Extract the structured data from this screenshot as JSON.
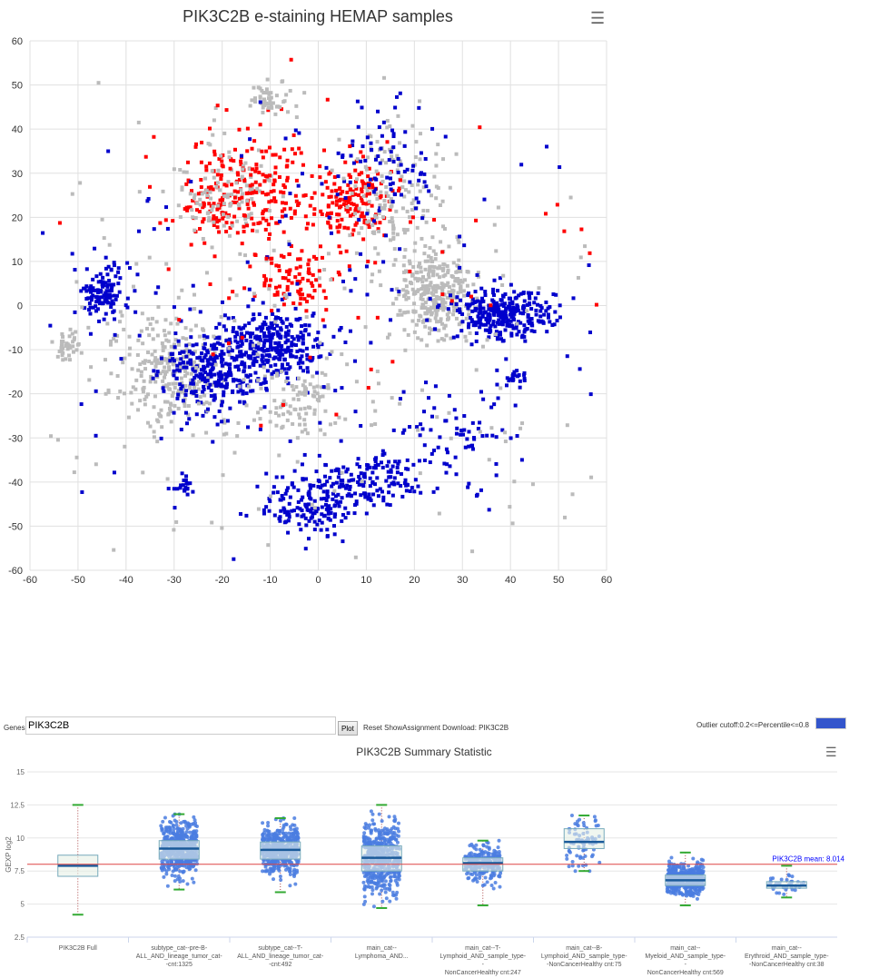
{
  "chart_data": [
    {
      "type": "scatter",
      "title": "PIK3C2B e-staining HEMAP samples",
      "xlim": [
        -60,
        60
      ],
      "ylim": [
        -60,
        60
      ],
      "xticks": [
        -60,
        -50,
        -40,
        -30,
        -20,
        -10,
        0,
        10,
        20,
        30,
        40,
        50,
        60
      ],
      "yticks": [
        -60,
        -50,
        -40,
        -30,
        -20,
        -10,
        0,
        10,
        20,
        30,
        40,
        50,
        60
      ],
      "grid": true,
      "colors": {
        "high": "#ff0000",
        "low": "#0000cc",
        "mid": "#bbbbbb"
      },
      "clusters": [
        {
          "x": -45,
          "y": 3,
          "sx": 3,
          "sy": 3,
          "n": 120,
          "c": "low"
        },
        {
          "x": -52,
          "y": -9,
          "sx": 1.5,
          "sy": 2,
          "n": 40,
          "c": "mid"
        },
        {
          "x": -30,
          "y": -15,
          "sx": 6,
          "sy": 6,
          "n": 250,
          "c": "mid"
        },
        {
          "x": -22,
          "y": -15,
          "sx": 5,
          "sy": 5,
          "n": 250,
          "c": "low"
        },
        {
          "x": -10,
          "y": -9,
          "sx": 5,
          "sy": 4,
          "n": 300,
          "c": "low"
        },
        {
          "x": -20,
          "y": 25,
          "sx": 4,
          "sy": 5,
          "n": 150,
          "c": "high"
        },
        {
          "x": -20,
          "y": 25,
          "sx": 5,
          "sy": 6,
          "n": 100,
          "c": "mid"
        },
        {
          "x": -9,
          "y": 27,
          "sx": 4,
          "sy": 8,
          "n": 120,
          "c": "high"
        },
        {
          "x": -10,
          "y": 47,
          "sx": 3,
          "sy": 2,
          "n": 50,
          "c": "mid"
        },
        {
          "x": -5,
          "y": 5,
          "sx": 5,
          "sy": 3,
          "n": 80,
          "c": "high"
        },
        {
          "x": 8,
          "y": 24,
          "sx": 4,
          "sy": 4,
          "n": 150,
          "c": "high"
        },
        {
          "x": 16,
          "y": 25,
          "sx": 5,
          "sy": 8,
          "n": 150,
          "c": "mid"
        },
        {
          "x": 15,
          "y": 32,
          "sx": 5,
          "sy": 6,
          "n": 80,
          "c": "low"
        },
        {
          "x": 24,
          "y": 3,
          "sx": 4,
          "sy": 5,
          "n": 300,
          "c": "mid"
        },
        {
          "x": 38,
          "y": -2,
          "sx": 5,
          "sy": 3,
          "n": 300,
          "c": "low"
        },
        {
          "x": 41,
          "y": -17,
          "sx": 1,
          "sy": 1,
          "n": 20,
          "c": "low"
        },
        {
          "x": -5,
          "y": -22,
          "sx": 4,
          "sy": 4,
          "n": 80,
          "c": "mid"
        },
        {
          "x": 10,
          "y": -40,
          "sx": 6,
          "sy": 3,
          "n": 150,
          "c": "low"
        },
        {
          "x": -2,
          "y": -46,
          "sx": 5,
          "sy": 3,
          "n": 150,
          "c": "low"
        },
        {
          "x": 30,
          "y": -30,
          "sx": 5,
          "sy": 6,
          "n": 70,
          "c": "low"
        },
        {
          "x": -28,
          "y": -41,
          "sx": 1,
          "sy": 1,
          "n": 20,
          "c": "low"
        },
        {
          "x": -5,
          "y": -10,
          "sx": 40,
          "sy": 25,
          "n": 250,
          "c": "mid"
        },
        {
          "x": 0,
          "y": 0,
          "sx": 35,
          "sy": 25,
          "n": 150,
          "c": "low"
        },
        {
          "x": 0,
          "y": 10,
          "sx": 25,
          "sy": 20,
          "n": 60,
          "c": "high"
        }
      ]
    },
    {
      "type": "box",
      "title": "PIK3C2B Summary Statistic",
      "ylabel": "GEXP log2",
      "ylim": [
        2.5,
        15
      ],
      "yticks": [
        2.5,
        5,
        7.5,
        10,
        12.5,
        15
      ],
      "mean": 8.014,
      "mean_label": "PIK3C2B mean: 8.014",
      "categories": [
        "PIK3C2B Full",
        "subtype_cat--pre-B-ALL_AND_lineage_tumor_cat--cnt:1325",
        "subtype_cat--T-ALL_AND_lineage_tumor_cat--cnt:492",
        "main_cat--Lymphoma_AND...",
        "main_cat--T-Lymphoid_AND_sample_type--NonCancerHealthy cnt:247",
        "main_cat--B-Lymphoid_AND_sample_type--NonCancerHealthy cnt:75",
        "main_cat--Myeloid_AND_sample_type--NonCancerHealthy cnt:569",
        "main_cat--Erythroid_AND_sample_type--NonCancerHealthy cnt:38"
      ],
      "boxes": [
        [
          4.2,
          7.1,
          7.9,
          8.7,
          12.5
        ],
        [
          6.1,
          8.4,
          9.2,
          9.8,
          11.8
        ],
        [
          5.9,
          8.4,
          9.1,
          9.7,
          11.5
        ],
        [
          4.7,
          7.5,
          8.5,
          9.4,
          12.5
        ],
        [
          4.9,
          7.5,
          8.1,
          8.5,
          9.8
        ],
        [
          7.5,
          9.2,
          9.7,
          10.7,
          11.7
        ],
        [
          4.9,
          6.4,
          6.8,
          7.2,
          8.9
        ],
        [
          5.5,
          6.2,
          6.4,
          6.7,
          7.9
        ]
      ],
      "point_counts": [
        0,
        1325,
        492,
        900,
        247,
        75,
        569,
        38
      ]
    }
  ],
  "controls": {
    "genes_label": "Genes:",
    "genes_value": "PIK3C2B",
    "plot_label": "Plot",
    "links": "Reset ShowAssignment Download: PIK3C2B",
    "outlier_label": "Outlier cutoff:0.2<=Percentile<=0.8",
    "outlier_color": "#3355cc"
  },
  "menu_icon": "hamburger-menu-icon"
}
